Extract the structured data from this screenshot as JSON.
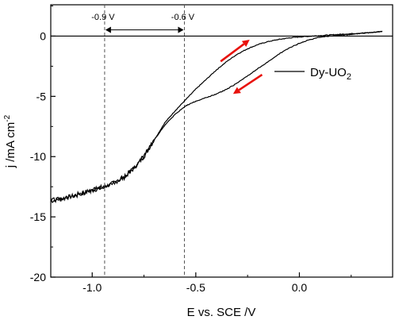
{
  "chart_data": {
    "type": "line",
    "xlabel": "E vs. SCE /V",
    "ylabel": "j /mA cm",
    "ylabel_sup": "-2",
    "xlim": [
      -1.2,
      0.45
    ],
    "ylim": [
      -20,
      2.6
    ],
    "xticks": [
      -1.0,
      -0.5,
      0.0
    ],
    "xtick_labels": [
      "-1.0",
      "-0.5",
      "0.0"
    ],
    "yticks": [
      0,
      -5,
      -10,
      -15,
      -20
    ],
    "ytick_labels": [
      "0",
      "-5",
      "-10",
      "-15",
      "-20"
    ],
    "grid": false,
    "legend": {
      "position": "right",
      "label_main": "Dy-UO",
      "label_sub": "2"
    },
    "reference_lines": {
      "horizontal_y": 0,
      "vertical_x": [
        -0.94,
        -0.555
      ],
      "vertical_labels": [
        "-0.9 V",
        "-0.6 V"
      ],
      "range_arrow_y": 0.45
    },
    "scan_arrows": [
      {
        "direction": "forward",
        "color": "#e8120c",
        "from": [
          -0.38,
          -2.1
        ],
        "to": [
          -0.24,
          -0.3
        ]
      },
      {
        "direction": "reverse",
        "color": "#e8120c",
        "from": [
          -0.18,
          -3.2
        ],
        "to": [
          -0.32,
          -4.8
        ]
      }
    ],
    "series": [
      {
        "name": "Dy-UO2",
        "color": "#000000",
        "forward": {
          "x": [
            -1.2,
            -1.15,
            -1.1,
            -1.05,
            -1.0,
            -0.95,
            -0.9,
            -0.85,
            -0.8,
            -0.75,
            -0.7,
            -0.65,
            -0.6,
            -0.55,
            -0.5,
            -0.45,
            -0.4,
            -0.35,
            -0.3,
            -0.25,
            -0.2,
            -0.15,
            -0.1,
            -0.05,
            0.0,
            0.05,
            0.1,
            0.15,
            0.2,
            0.25,
            0.3,
            0.35,
            0.4
          ],
          "y": [
            -13.7,
            -13.5,
            -13.3,
            -13.0,
            -12.8,
            -12.6,
            -12.2,
            -11.8,
            -11.0,
            -10.0,
            -8.6,
            -7.2,
            -6.2,
            -5.3,
            -4.4,
            -3.6,
            -2.8,
            -2.1,
            -1.5,
            -1.05,
            -0.7,
            -0.45,
            -0.28,
            -0.15,
            -0.07,
            -0.01,
            0.04,
            0.1,
            0.15,
            0.2,
            0.25,
            0.3,
            0.4
          ]
        },
        "reverse": {
          "x": [
            0.4,
            0.35,
            0.3,
            0.25,
            0.2,
            0.15,
            0.1,
            0.05,
            0.0,
            -0.05,
            -0.1,
            -0.15,
            -0.2,
            -0.25,
            -0.3,
            -0.35,
            -0.4,
            -0.45,
            -0.5,
            -0.55,
            -0.6,
            -0.65,
            -0.7,
            -0.75,
            -0.8,
            -0.85,
            -0.9,
            -0.95,
            -1.0,
            -1.05,
            -1.1,
            -1.15,
            -1.2
          ],
          "y": [
            0.4,
            0.3,
            0.22,
            0.15,
            0.08,
            0.02,
            -0.08,
            -0.3,
            -0.6,
            -1.0,
            -1.5,
            -2.1,
            -2.7,
            -3.3,
            -3.9,
            -4.4,
            -4.8,
            -5.1,
            -5.4,
            -5.8,
            -6.5,
            -7.4,
            -8.6,
            -9.9,
            -11.0,
            -11.7,
            -12.2,
            -12.5,
            -12.8,
            -13.1,
            -13.3,
            -13.5,
            -13.6
          ]
        }
      }
    ]
  }
}
